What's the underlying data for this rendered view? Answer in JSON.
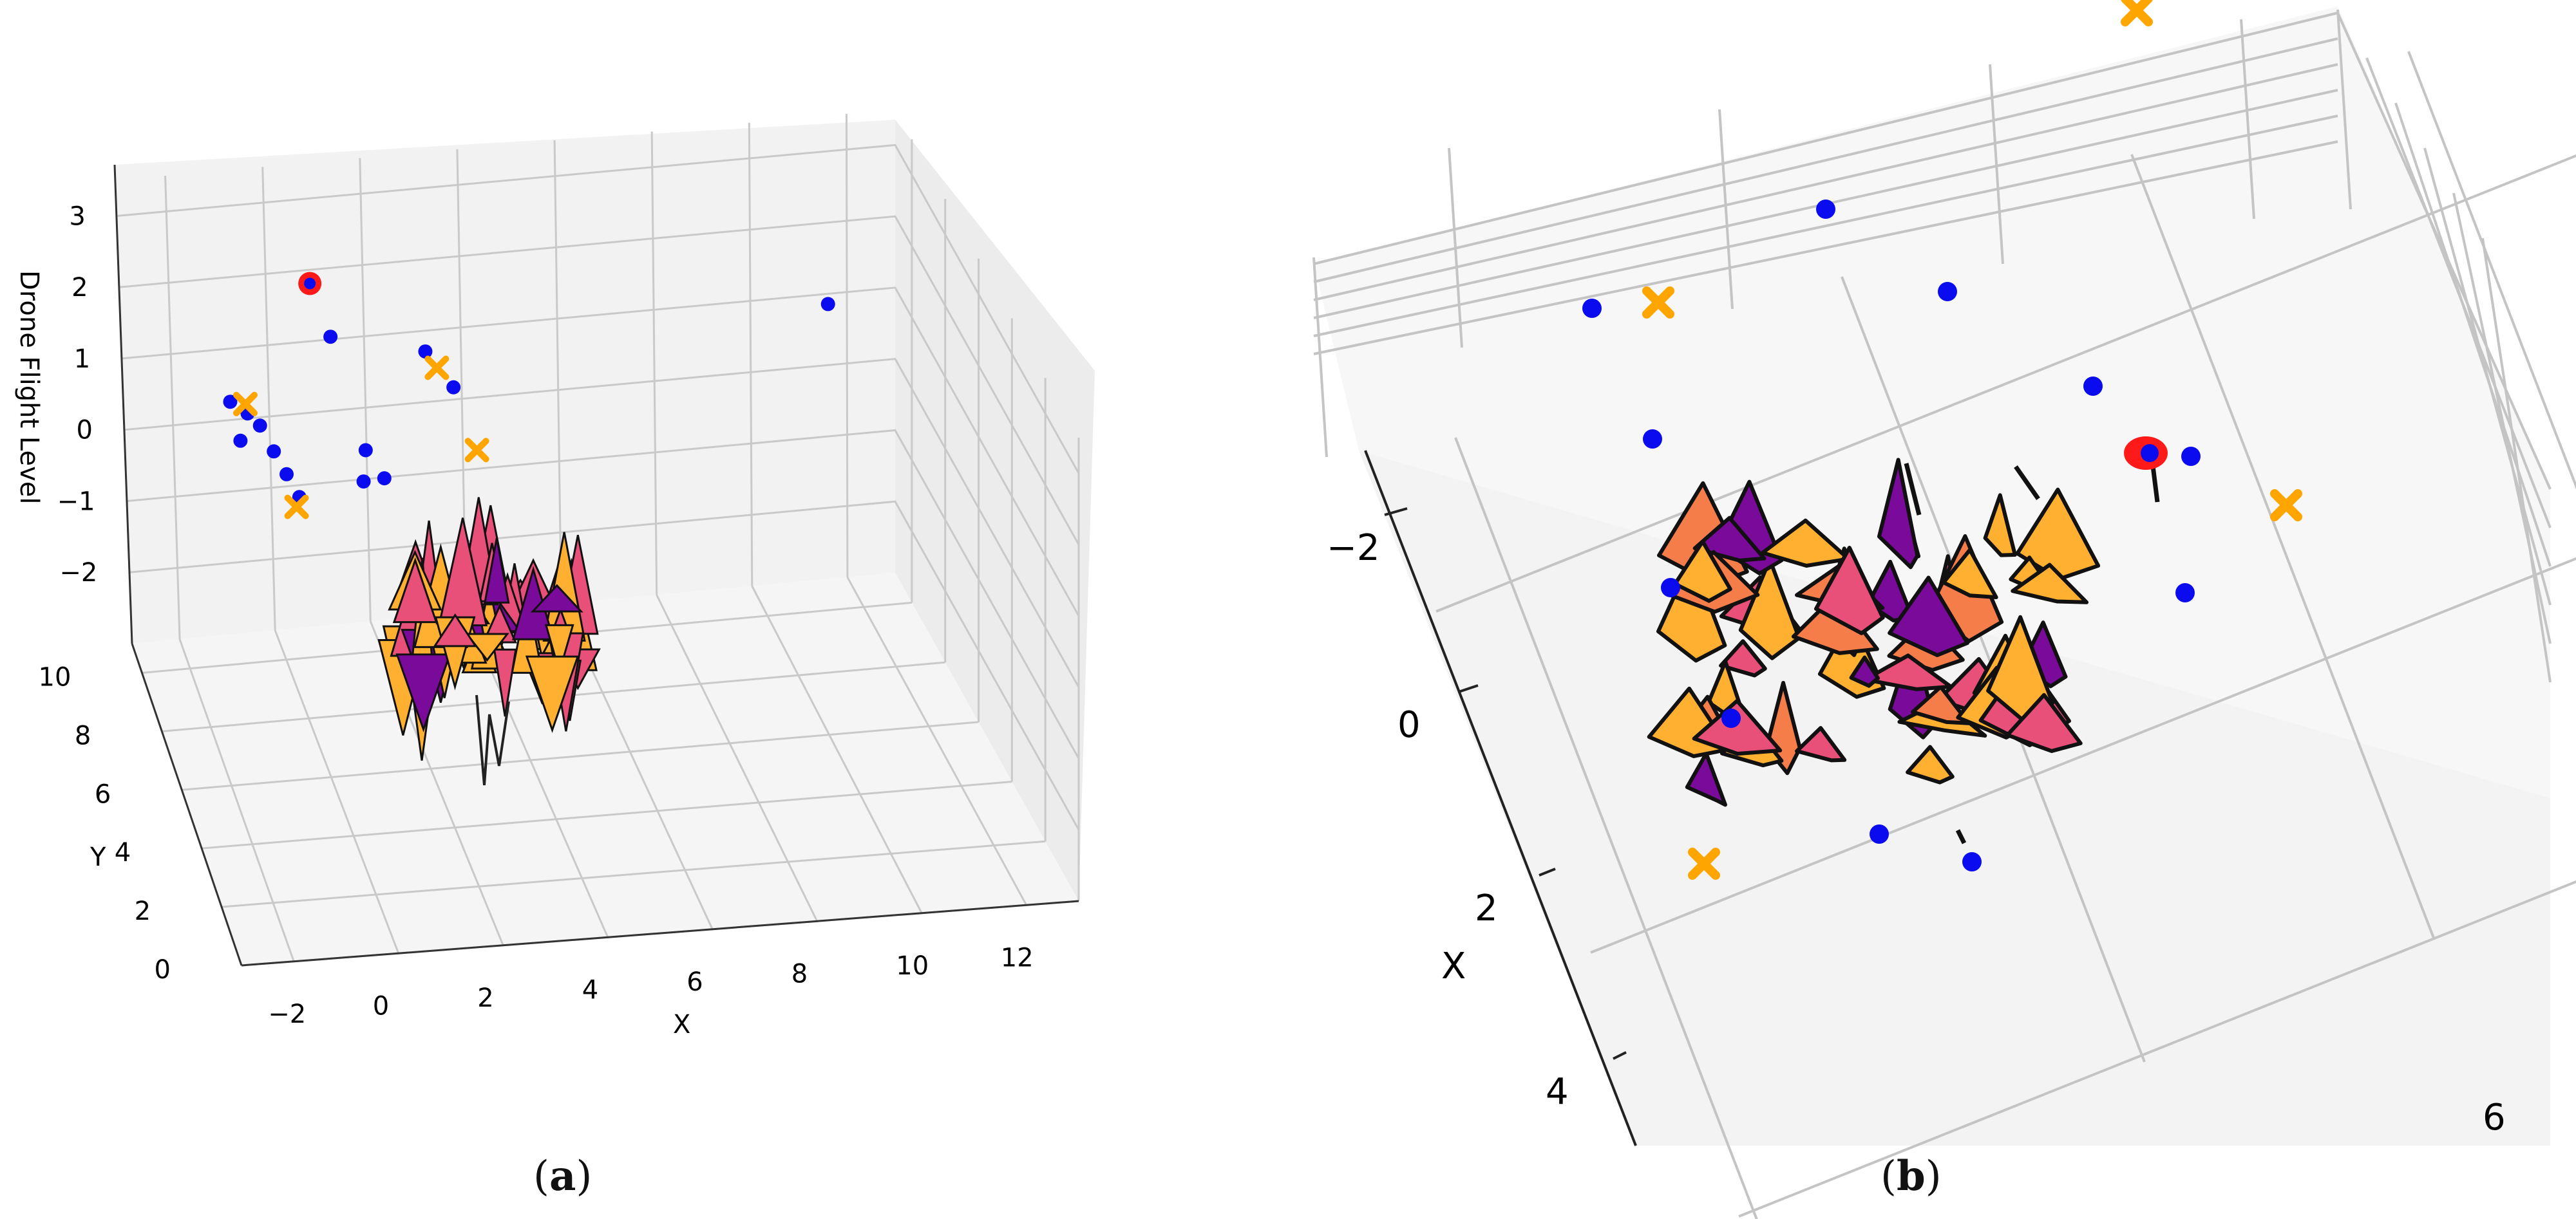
{
  "captions": {
    "a": "a",
    "b": "b"
  },
  "colors": {
    "drone": "#0b0bf0",
    "start": "#ff1a1a",
    "waypoint": "#ffa500",
    "surface_low": "#7a0a9a",
    "surface_mid": "#e8507a",
    "surface_high": "#ffb030",
    "grid": "#c9c9c9",
    "pane": "#f2f2f2"
  },
  "chart_data": [
    {
      "type": "scatter",
      "projection": "3d",
      "xlabel": "X",
      "ylabel": "Y",
      "zlabel": "Drone Flight Level",
      "xticks": [
        "−2",
        "0",
        "2",
        "4",
        "6",
        "8",
        "10",
        "12"
      ],
      "yticks": [
        "0",
        "2",
        "4",
        "6",
        "8",
        "10"
      ],
      "zticks": [
        "3",
        "2",
        "1",
        "0",
        "−1",
        "−2"
      ],
      "xlim": [
        -3,
        13
      ],
      "ylim": [
        0,
        11
      ],
      "zlim": [
        -3,
        3.5
      ],
      "grid": true,
      "series": [
        {
          "marker": "circle",
          "color": "drone",
          "points": [
            [
              0.6,
              7.8,
              2.4
            ],
            [
              -1.6,
              7.0,
              1.95
            ],
            [
              -1.3,
              6.8,
              1.85
            ],
            [
              -1.1,
              6.6,
              1.75
            ],
            [
              -0.9,
              6.3,
              1.5
            ],
            [
              -0.7,
              6.1,
              1.25
            ],
            [
              -0.5,
              5.9,
              1.0
            ],
            [
              -1.4,
              7.1,
              1.35
            ],
            [
              0.9,
              6.2,
              1.45
            ],
            [
              0.8,
              6.0,
              1.1
            ],
            [
              1.3,
              6.4,
              0.95
            ],
            [
              2.4,
              7.4,
              2.25
            ],
            [
              2.9,
              7.2,
              1.8
            ],
            [
              10.8,
              8.5,
              1.95
            ]
          ]
        },
        {
          "marker": "circle-large",
          "color": "start",
          "points": [
            [
              0.3,
              8.2,
              3.0
            ]
          ]
        },
        {
          "marker": "x",
          "color": "waypoint",
          "points": [
            [
              2.6,
              7.3,
              2.05
            ],
            [
              3.2,
              6.6,
              1.15
            ],
            [
              -0.6,
              5.7,
              0.95
            ],
            [
              -1.3,
              7.0,
              1.9
            ]
          ]
        }
      ]
    },
    {
      "type": "scatter",
      "projection": "3d-top",
      "xlabel": "X",
      "xticks": [
        "−2",
        "0",
        "2",
        "4"
      ],
      "yticks": [
        "6"
      ],
      "grid": true,
      "series": [
        {
          "marker": "circle",
          "color": "drone",
          "points": [
            [
              -2.7,
              4.1
            ],
            [
              -2.1,
              4.6
            ],
            [
              -1.4,
              5.2
            ],
            [
              -0.9,
              5.6
            ],
            [
              -2.0,
              3.2
            ],
            [
              -1.3,
              3.2
            ],
            [
              -0.6,
              3.4
            ],
            [
              -2.7,
              3.0
            ],
            [
              0.5,
              4.4
            ],
            [
              1.9,
              7.3
            ],
            [
              -0.1,
              7.4
            ],
            [
              0.2,
              4.0
            ],
            [
              -0.3,
              5.5
            ]
          ]
        },
        {
          "marker": "circle-large",
          "color": "start",
          "points": [
            [
              -1.0,
              5.4
            ]
          ]
        },
        {
          "marker": "x",
          "color": "waypoint",
          "points": [
            [
              -3.0,
              5.6
            ],
            [
              -2.6,
              3.3
            ],
            [
              -0.5,
              6.0
            ],
            [
              0.0,
              3.2
            ]
          ]
        }
      ]
    }
  ]
}
